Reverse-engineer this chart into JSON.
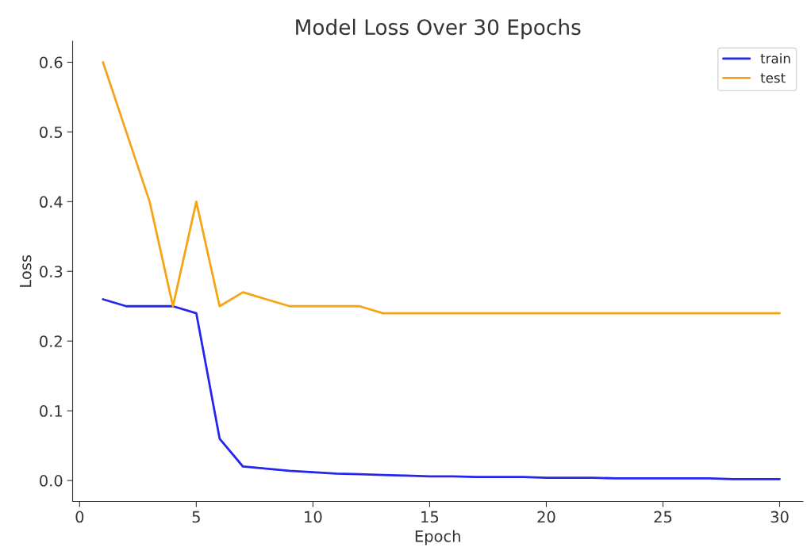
{
  "chart_data": {
    "type": "line",
    "title": "Model Loss Over 30 Epochs",
    "xlabel": "Epoch",
    "ylabel": "Loss",
    "x": [
      1,
      2,
      3,
      4,
      5,
      6,
      7,
      8,
      9,
      10,
      11,
      12,
      13,
      14,
      15,
      16,
      17,
      18,
      19,
      20,
      21,
      22,
      23,
      24,
      25,
      26,
      27,
      28,
      29,
      30
    ],
    "series": [
      {
        "name": "train",
        "color": "#2525ee",
        "values": [
          0.26,
          0.25,
          0.25,
          0.25,
          0.24,
          0.06,
          0.02,
          0.017,
          0.014,
          0.012,
          0.01,
          0.009,
          0.008,
          0.007,
          0.006,
          0.006,
          0.005,
          0.005,
          0.005,
          0.004,
          0.004,
          0.004,
          0.003,
          0.003,
          0.003,
          0.003,
          0.003,
          0.002,
          0.002,
          0.002
        ]
      },
      {
        "name": "test",
        "color": "#f5a514",
        "values": [
          0.6,
          0.5,
          0.4,
          0.25,
          0.4,
          0.25,
          0.27,
          0.26,
          0.25,
          0.25,
          0.25,
          0.25,
          0.24,
          0.24,
          0.24,
          0.24,
          0.24,
          0.24,
          0.24,
          0.24,
          0.24,
          0.24,
          0.24,
          0.24,
          0.24,
          0.24,
          0.24,
          0.24,
          0.24,
          0.24
        ]
      }
    ],
    "xlim": [
      -0.3,
      31
    ],
    "ylim": [
      -0.03,
      0.63
    ],
    "xticks": [
      0,
      5,
      10,
      15,
      20,
      25,
      30
    ],
    "yticks": [
      {
        "value": 0,
        "label": "0.0"
      },
      0.1,
      0.2,
      0.3,
      0.4,
      0.5,
      0.6
    ],
    "grid": false,
    "legend": "top right",
    "marker": "none",
    "line_style": "solid"
  }
}
